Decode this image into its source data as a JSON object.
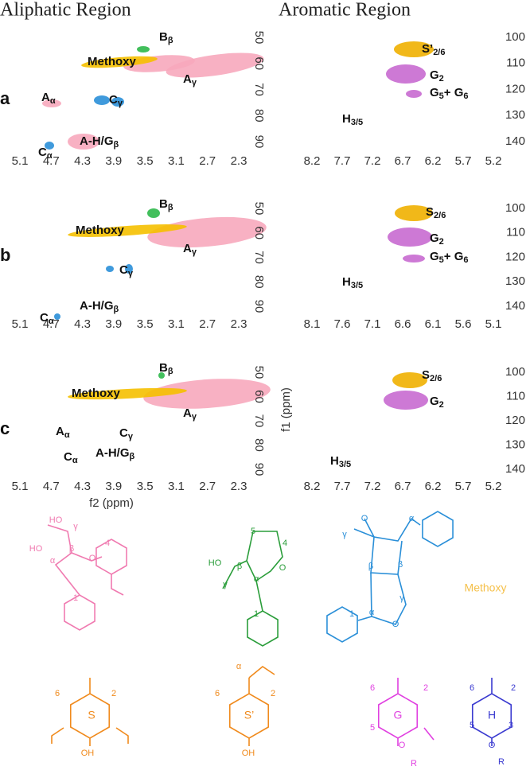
{
  "header": {
    "aliphatic": "Aliphatic Region",
    "aromatic": "Aromatic Region"
  },
  "axis_labels": {
    "x": "f2 (ppm)",
    "y": "f1 (ppm)"
  },
  "panels": [
    {
      "label": "a",
      "aliphatic": {
        "xticks": [
          5.1,
          4.7,
          4.3,
          3.9,
          3.5,
          3.1,
          2.7,
          2.3
        ],
        "yticks": [
          50,
          60,
          70,
          80,
          90
        ],
        "annotations": [
          {
            "parts": [
              "B",
              "β"
            ]
          },
          {
            "parts": [
              "Methoxy"
            ]
          },
          {
            "parts": [
              "A",
              "γ"
            ]
          },
          {
            "parts": [
              "A",
              "α"
            ]
          },
          {
            "parts": [
              "C",
              "γ"
            ]
          },
          {
            "parts": [
              "A-H/G",
              "β"
            ]
          },
          {
            "parts": [
              "C",
              "α"
            ]
          }
        ]
      },
      "aromatic": {
        "xticks": [
          8.2,
          7.7,
          7.2,
          6.7,
          6.2,
          5.7,
          5.2
        ],
        "yticks": [
          100,
          110,
          120,
          130,
          140
        ],
        "annotations": [
          {
            "parts": [
              "S’",
              "2/6"
            ]
          },
          {
            "parts": [
              "G",
              "2"
            ]
          },
          {
            "parts": [
              "G",
              "5",
              "+ G",
              "6"
            ]
          },
          {
            "parts": [
              "H",
              "3/5"
            ],
            "color": "#2a8fd8"
          }
        ]
      }
    },
    {
      "label": "b",
      "aliphatic": {
        "xticks": [
          5.1,
          4.7,
          4.3,
          3.9,
          3.5,
          3.1,
          2.7,
          2.3
        ],
        "yticks": [
          50,
          60,
          70,
          80,
          90
        ],
        "annotations": [
          {
            "parts": [
              "B",
              "β"
            ]
          },
          {
            "parts": [
              "Methoxy"
            ]
          },
          {
            "parts": [
              "A",
              "γ"
            ]
          },
          {
            "parts": [
              "C",
              "γ"
            ]
          },
          {
            "parts": [
              "A-H/G",
              "β"
            ]
          },
          {
            "parts": [
              "C",
              "α"
            ]
          }
        ]
      },
      "aromatic": {
        "xticks": [
          8.1,
          7.6,
          7.1,
          6.6,
          6.1,
          5.6,
          5.1
        ],
        "yticks": [
          100,
          110,
          120,
          130,
          140
        ],
        "annotations": [
          {
            "parts": [
              "S",
              "2/6"
            ]
          },
          {
            "parts": [
              "G",
              "2"
            ]
          },
          {
            "parts": [
              "G",
              "5",
              "+ G",
              "6"
            ]
          },
          {
            "parts": [
              "H",
              "3/5"
            ],
            "color": "#2a8fd8"
          }
        ]
      }
    },
    {
      "label": "c",
      "aliphatic": {
        "xticks": [
          5.1,
          4.7,
          4.3,
          3.9,
          3.5,
          3.1,
          2.7,
          2.3
        ],
        "yticks": [
          50,
          60,
          70,
          80,
          90
        ],
        "annotations": [
          {
            "parts": [
              "B",
              "β"
            ]
          },
          {
            "parts": [
              "Methoxy"
            ]
          },
          {
            "parts": [
              "A",
              "γ"
            ]
          },
          {
            "parts": [
              "A",
              "α"
            ]
          },
          {
            "parts": [
              "C",
              "γ"
            ]
          },
          {
            "parts": [
              "A-H/G",
              "β"
            ]
          },
          {
            "parts": [
              "C",
              "α"
            ]
          }
        ]
      },
      "aromatic": {
        "xticks": [
          8.2,
          7.7,
          7.2,
          6.7,
          6.2,
          5.7,
          5.2
        ],
        "yticks": [
          100,
          110,
          120,
          130,
          140
        ],
        "annotations": [
          {
            "parts": [
              "S",
              "2/6"
            ]
          },
          {
            "parts": [
              "G",
              "2"
            ]
          },
          {
            "parts": [
              "H",
              "3/5"
            ],
            "color": "#2a8fd8"
          }
        ]
      }
    }
  ],
  "structures": [
    {
      "color": "#f07ab0",
      "labels": [
        "HO",
        "HO",
        "γ",
        "β",
        "α",
        "O",
        "4",
        "1"
      ]
    },
    {
      "color": "#2a9d3a",
      "labels": [
        "HO",
        "γ",
        "β",
        "5",
        "4",
        "α",
        "O",
        "1"
      ]
    },
    {
      "color": "#2a8fd8",
      "labels": [
        "O",
        "α",
        "γ",
        "β",
        "β",
        "γ",
        "O",
        "α",
        "1"
      ]
    },
    {
      "color": "#f5c04a",
      "labels": [
        "Methoxy"
      ]
    },
    {
      "color": "#f08a1c",
      "labels": [
        "6",
        "2",
        "S",
        "OH"
      ]
    },
    {
      "color": "#f08a1c",
      "labels": [
        "α",
        "6",
        "2",
        "S’",
        "OH"
      ]
    },
    {
      "color": "#e040e0",
      "labels": [
        "6",
        "2",
        "G",
        "5",
        "O",
        "R"
      ]
    },
    {
      "color": "#3a3ad0",
      "labels": [
        "6",
        "2",
        "H",
        "5",
        "3",
        "O",
        "R"
      ]
    }
  ]
}
